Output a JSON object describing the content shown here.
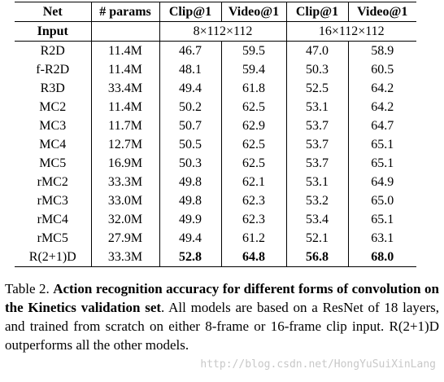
{
  "table": {
    "header": [
      "Net",
      "# params",
      "Clip@1",
      "Video@1",
      "Clip@1",
      "Video@1"
    ],
    "input_row": {
      "label": "Input",
      "settings": [
        "8×112×112",
        "16×112×112"
      ]
    },
    "rows": [
      [
        "R2D",
        "11.4M",
        "46.7",
        "59.5",
        "47.0",
        "58.9"
      ],
      [
        "f-R2D",
        "11.4M",
        "48.1",
        "59.4",
        "50.3",
        "60.5"
      ],
      [
        "R3D",
        "33.4M",
        "49.4",
        "61.8",
        "52.5",
        "64.2"
      ],
      [
        "MC2",
        "11.4M",
        "50.2",
        "62.5",
        "53.1",
        "64.2"
      ],
      [
        "MC3",
        "11.7M",
        "50.7",
        "62.9",
        "53.7",
        "64.7"
      ],
      [
        "MC4",
        "12.7M",
        "50.5",
        "62.5",
        "53.7",
        "65.1"
      ],
      [
        "MC5",
        "16.9M",
        "50.3",
        "62.5",
        "53.7",
        "65.1"
      ],
      [
        "rMC2",
        "33.3M",
        "49.8",
        "62.1",
        "53.1",
        "64.9"
      ],
      [
        "rMC3",
        "33.0M",
        "49.8",
        "62.3",
        "53.2",
        "65.0"
      ],
      [
        "rMC4",
        "32.0M",
        "49.9",
        "62.3",
        "53.4",
        "65.1"
      ],
      [
        "rMC5",
        "27.9M",
        "49.4",
        "61.2",
        "52.1",
        "63.1"
      ],
      [
        "R(2+1)D",
        "33.3M",
        "52.8",
        "64.8",
        "56.8",
        "68.0"
      ]
    ]
  },
  "caption": {
    "label": "Table 2.",
    "title": "Action recognition accuracy for different forms of convolution on the Kinetics validation set",
    "text": ". All models are based on a ResNet of 18 layers, and trained from scratch on either 8-frame or 16-frame clip input. R(2+1)D outperforms all the other models."
  },
  "watermark": "http://blog.csdn.net/HongYuSuiXinLang"
}
